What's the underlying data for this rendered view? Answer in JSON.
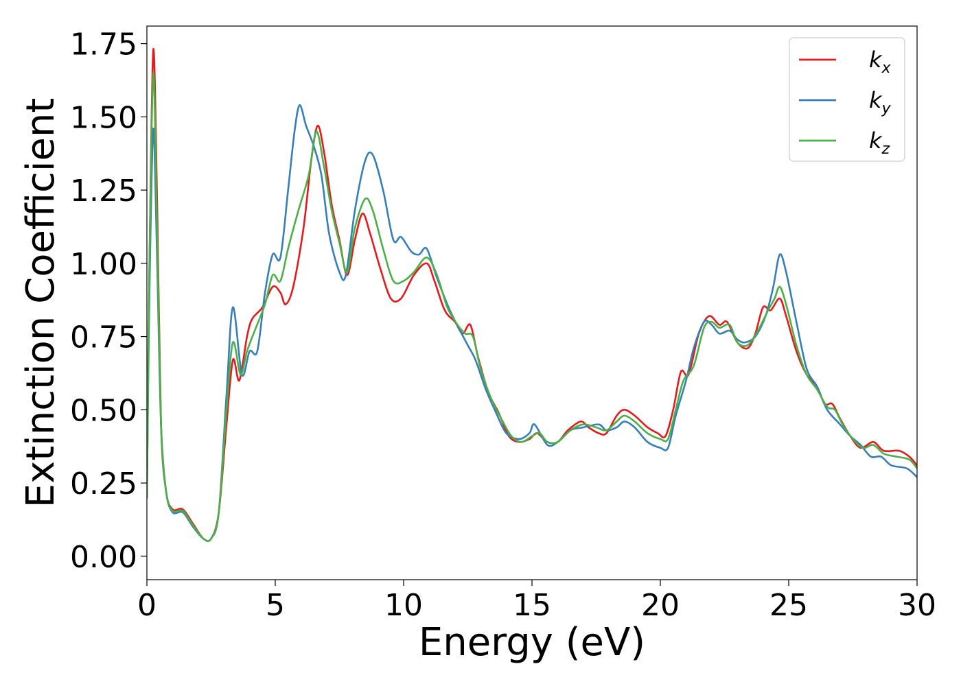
{
  "chart_data": {
    "type": "line",
    "xlabel": "Energy (eV)",
    "ylabel": "Extinction Coefficient",
    "xlim": [
      0,
      30
    ],
    "ylim": [
      -0.08,
      1.81
    ],
    "x_ticks": [
      "0",
      "5",
      "10",
      "15",
      "20",
      "25",
      "30"
    ],
    "y_ticks": [
      "0.00",
      "0.25",
      "0.50",
      "0.75",
      "1.00",
      "1.25",
      "1.50",
      "1.75"
    ],
    "grid": false,
    "legend_position": "top-right",
    "series": [
      {
        "name": "k_x",
        "legend_base": "k",
        "legend_sub": "x",
        "color": "#e41a1c",
        "points": [
          [
            0,
            0.2
          ],
          [
            0.1,
            1.0
          ],
          [
            0.25,
            1.73
          ],
          [
            0.4,
            1.2
          ],
          [
            0.55,
            0.45
          ],
          [
            0.75,
            0.22
          ],
          [
            1.0,
            0.16
          ],
          [
            1.4,
            0.16
          ],
          [
            1.8,
            0.11
          ],
          [
            2.2,
            0.06
          ],
          [
            2.5,
            0.06
          ],
          [
            2.8,
            0.15
          ],
          [
            3.1,
            0.45
          ],
          [
            3.35,
            0.67
          ],
          [
            3.6,
            0.6
          ],
          [
            3.9,
            0.75
          ],
          [
            4.1,
            0.81
          ],
          [
            4.5,
            0.85
          ],
          [
            4.9,
            0.92
          ],
          [
            5.2,
            0.9
          ],
          [
            5.4,
            0.86
          ],
          [
            5.7,
            0.92
          ],
          [
            6.1,
            1.12
          ],
          [
            6.4,
            1.35
          ],
          [
            6.65,
            1.47
          ],
          [
            6.9,
            1.38
          ],
          [
            7.2,
            1.2
          ],
          [
            7.5,
            1.08
          ],
          [
            7.8,
            0.96
          ],
          [
            8.1,
            1.08
          ],
          [
            8.4,
            1.17
          ],
          [
            8.7,
            1.1
          ],
          [
            9.1,
            0.98
          ],
          [
            9.5,
            0.88
          ],
          [
            9.9,
            0.88
          ],
          [
            10.4,
            0.96
          ],
          [
            10.9,
            1.0
          ],
          [
            11.2,
            0.94
          ],
          [
            11.6,
            0.84
          ],
          [
            12.0,
            0.8
          ],
          [
            12.3,
            0.76
          ],
          [
            12.6,
            0.79
          ],
          [
            12.9,
            0.68
          ],
          [
            13.3,
            0.56
          ],
          [
            13.7,
            0.49
          ],
          [
            14.1,
            0.41
          ],
          [
            14.5,
            0.39
          ],
          [
            14.9,
            0.4
          ],
          [
            15.2,
            0.42
          ],
          [
            15.6,
            0.39
          ],
          [
            16.0,
            0.39
          ],
          [
            16.4,
            0.43
          ],
          [
            16.9,
            0.46
          ],
          [
            17.2,
            0.44
          ],
          [
            17.6,
            0.42
          ],
          [
            17.9,
            0.42
          ],
          [
            18.3,
            0.48
          ],
          [
            18.6,
            0.5
          ],
          [
            19.0,
            0.48
          ],
          [
            19.5,
            0.44
          ],
          [
            19.9,
            0.42
          ],
          [
            20.2,
            0.41
          ],
          [
            20.5,
            0.5
          ],
          [
            20.8,
            0.63
          ],
          [
            21.1,
            0.62
          ],
          [
            21.5,
            0.76
          ],
          [
            21.9,
            0.82
          ],
          [
            22.3,
            0.79
          ],
          [
            22.6,
            0.8
          ],
          [
            23.0,
            0.73
          ],
          [
            23.4,
            0.71
          ],
          [
            23.7,
            0.76
          ],
          [
            24.0,
            0.85
          ],
          [
            24.3,
            0.84
          ],
          [
            24.65,
            0.88
          ],
          [
            24.9,
            0.82
          ],
          [
            25.3,
            0.7
          ],
          [
            25.7,
            0.62
          ],
          [
            26.1,
            0.58
          ],
          [
            26.4,
            0.52
          ],
          [
            26.7,
            0.52
          ],
          [
            27.0,
            0.47
          ],
          [
            27.4,
            0.41
          ],
          [
            27.8,
            0.37
          ],
          [
            28.3,
            0.39
          ],
          [
            28.7,
            0.36
          ],
          [
            29.3,
            0.36
          ],
          [
            29.7,
            0.34
          ],
          [
            30.0,
            0.31
          ]
        ]
      },
      {
        "name": "k_y",
        "legend_base": "k",
        "legend_sub": "y",
        "color": "#377eb8",
        "points": [
          [
            0,
            0.2
          ],
          [
            0.1,
            0.9
          ],
          [
            0.25,
            1.46
          ],
          [
            0.4,
            1.0
          ],
          [
            0.55,
            0.45
          ],
          [
            0.75,
            0.22
          ],
          [
            1.0,
            0.15
          ],
          [
            1.4,
            0.15
          ],
          [
            1.8,
            0.1
          ],
          [
            2.2,
            0.06
          ],
          [
            2.5,
            0.06
          ],
          [
            2.8,
            0.15
          ],
          [
            3.1,
            0.55
          ],
          [
            3.35,
            0.85
          ],
          [
            3.7,
            0.62
          ],
          [
            4.0,
            0.7
          ],
          [
            4.3,
            0.7
          ],
          [
            4.6,
            0.9
          ],
          [
            4.9,
            1.03
          ],
          [
            5.2,
            1.02
          ],
          [
            5.5,
            1.25
          ],
          [
            5.75,
            1.45
          ],
          [
            5.95,
            1.54
          ],
          [
            6.2,
            1.47
          ],
          [
            6.5,
            1.4
          ],
          [
            6.8,
            1.3
          ],
          [
            7.1,
            1.1
          ],
          [
            7.5,
            0.97
          ],
          [
            7.75,
            0.96
          ],
          [
            8.1,
            1.18
          ],
          [
            8.5,
            1.35
          ],
          [
            8.8,
            1.37
          ],
          [
            9.2,
            1.25
          ],
          [
            9.6,
            1.08
          ],
          [
            9.9,
            1.09
          ],
          [
            10.3,
            1.04
          ],
          [
            10.6,
            1.03
          ],
          [
            10.9,
            1.05
          ],
          [
            11.3,
            0.95
          ],
          [
            11.8,
            0.84
          ],
          [
            12.2,
            0.77
          ],
          [
            12.5,
            0.72
          ],
          [
            12.8,
            0.67
          ],
          [
            13.2,
            0.57
          ],
          [
            13.6,
            0.49
          ],
          [
            14.0,
            0.42
          ],
          [
            14.5,
            0.4
          ],
          [
            14.9,
            0.42
          ],
          [
            15.1,
            0.45
          ],
          [
            15.6,
            0.38
          ],
          [
            16.0,
            0.39
          ],
          [
            16.5,
            0.43
          ],
          [
            17.0,
            0.44
          ],
          [
            17.6,
            0.45
          ],
          [
            17.9,
            0.43
          ],
          [
            18.3,
            0.44
          ],
          [
            18.6,
            0.46
          ],
          [
            19.0,
            0.44
          ],
          [
            19.5,
            0.39
          ],
          [
            20.0,
            0.37
          ],
          [
            20.3,
            0.37
          ],
          [
            20.6,
            0.48
          ],
          [
            21.0,
            0.6
          ],
          [
            21.3,
            0.71
          ],
          [
            21.7,
            0.8
          ],
          [
            22.0,
            0.79
          ],
          [
            22.3,
            0.76
          ],
          [
            22.7,
            0.77
          ],
          [
            23.0,
            0.74
          ],
          [
            23.3,
            0.73
          ],
          [
            23.7,
            0.75
          ],
          [
            24.1,
            0.82
          ],
          [
            24.4,
            0.92
          ],
          [
            24.65,
            1.03
          ],
          [
            24.9,
            0.97
          ],
          [
            25.3,
            0.8
          ],
          [
            25.7,
            0.64
          ],
          [
            26.1,
            0.58
          ],
          [
            26.5,
            0.5
          ],
          [
            27.0,
            0.45
          ],
          [
            27.4,
            0.41
          ],
          [
            27.8,
            0.38
          ],
          [
            28.2,
            0.34
          ],
          [
            28.6,
            0.34
          ],
          [
            29.0,
            0.31
          ],
          [
            29.6,
            0.3
          ],
          [
            30.0,
            0.27
          ]
        ]
      },
      {
        "name": "k_z",
        "legend_base": "k",
        "legend_sub": "z",
        "color": "#4daf4a",
        "points": [
          [
            0,
            0.2
          ],
          [
            0.1,
            1.0
          ],
          [
            0.25,
            1.65
          ],
          [
            0.4,
            1.1
          ],
          [
            0.55,
            0.45
          ],
          [
            0.75,
            0.22
          ],
          [
            1.0,
            0.155
          ],
          [
            1.4,
            0.155
          ],
          [
            1.8,
            0.105
          ],
          [
            2.2,
            0.06
          ],
          [
            2.5,
            0.06
          ],
          [
            2.8,
            0.15
          ],
          [
            3.1,
            0.5
          ],
          [
            3.35,
            0.73
          ],
          [
            3.65,
            0.62
          ],
          [
            3.9,
            0.7
          ],
          [
            4.2,
            0.77
          ],
          [
            4.6,
            0.86
          ],
          [
            4.9,
            0.96
          ],
          [
            5.2,
            0.94
          ],
          [
            5.5,
            1.05
          ],
          [
            5.9,
            1.18
          ],
          [
            6.3,
            1.3
          ],
          [
            6.6,
            1.45
          ],
          [
            6.9,
            1.33
          ],
          [
            7.2,
            1.18
          ],
          [
            7.5,
            1.07
          ],
          [
            7.8,
            0.97
          ],
          [
            8.1,
            1.12
          ],
          [
            8.5,
            1.22
          ],
          [
            8.8,
            1.18
          ],
          [
            9.2,
            1.05
          ],
          [
            9.6,
            0.94
          ],
          [
            10.0,
            0.94
          ],
          [
            10.4,
            0.97
          ],
          [
            10.9,
            1.02
          ],
          [
            11.3,
            0.96
          ],
          [
            11.7,
            0.85
          ],
          [
            12.1,
            0.79
          ],
          [
            12.4,
            0.76
          ],
          [
            12.7,
            0.75
          ],
          [
            13.0,
            0.64
          ],
          [
            13.4,
            0.54
          ],
          [
            13.8,
            0.47
          ],
          [
            14.2,
            0.41
          ],
          [
            14.6,
            0.39
          ],
          [
            15.0,
            0.41
          ],
          [
            15.3,
            0.42
          ],
          [
            15.6,
            0.39
          ],
          [
            16.0,
            0.39
          ],
          [
            16.5,
            0.43
          ],
          [
            17.0,
            0.45
          ],
          [
            17.5,
            0.44
          ],
          [
            17.9,
            0.43
          ],
          [
            18.3,
            0.46
          ],
          [
            18.6,
            0.48
          ],
          [
            19.0,
            0.46
          ],
          [
            19.5,
            0.42
          ],
          [
            20.0,
            0.4
          ],
          [
            20.3,
            0.4
          ],
          [
            20.6,
            0.5
          ],
          [
            20.9,
            0.6
          ],
          [
            21.3,
            0.65
          ],
          [
            21.7,
            0.78
          ],
          [
            22.0,
            0.8
          ],
          [
            22.3,
            0.78
          ],
          [
            22.7,
            0.79
          ],
          [
            23.0,
            0.73
          ],
          [
            23.4,
            0.72
          ],
          [
            23.8,
            0.77
          ],
          [
            24.2,
            0.84
          ],
          [
            24.45,
            0.88
          ],
          [
            24.65,
            0.92
          ],
          [
            24.9,
            0.86
          ],
          [
            25.3,
            0.72
          ],
          [
            25.7,
            0.62
          ],
          [
            26.1,
            0.57
          ],
          [
            26.5,
            0.51
          ],
          [
            26.8,
            0.5
          ],
          [
            27.1,
            0.45
          ],
          [
            27.5,
            0.4
          ],
          [
            27.9,
            0.37
          ],
          [
            28.3,
            0.38
          ],
          [
            28.7,
            0.35
          ],
          [
            29.2,
            0.34
          ],
          [
            29.7,
            0.33
          ],
          [
            30.0,
            0.3
          ]
        ]
      }
    ]
  }
}
